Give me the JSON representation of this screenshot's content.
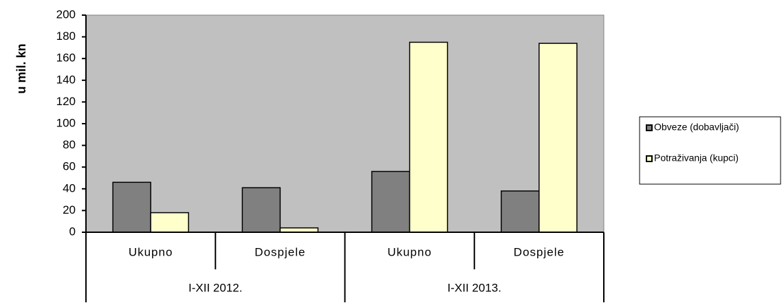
{
  "chart_data": {
    "type": "bar",
    "y_label": "u mil. kn",
    "categories": [
      "Ukupno",
      "Dospjele",
      "Ukupno",
      "Dospjele"
    ],
    "groups": [
      "I-XII 2012.",
      "I-XII 2013."
    ],
    "series": [
      {
        "name": "Obveze (dobavljači)",
        "color": "#808080",
        "values": [
          46,
          41,
          56,
          38
        ]
      },
      {
        "name": "Potraživanja (kupci)",
        "color": "#ffffcc",
        "values": [
          18,
          4,
          175,
          174
        ]
      }
    ],
    "ylim": [
      0,
      200
    ],
    "yticks": [
      0,
      20,
      40,
      60,
      80,
      100,
      120,
      140,
      160,
      180,
      200
    ],
    "plot_background": "#c0c0c0",
    "legend": "right"
  }
}
